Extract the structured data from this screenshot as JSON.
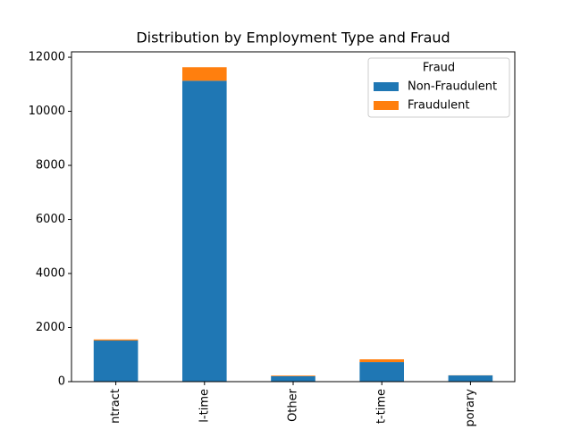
{
  "chart_data": {
    "type": "stacked_bar",
    "title": "Distribution by Employment Type and Fraud",
    "categories": [
      "ntract",
      "l-time",
      "Other",
      "t-time",
      "porary"
    ],
    "series": [
      {
        "name": "Non-Fraudulent",
        "color": "#1f77b4",
        "values": [
          1520,
          11130,
          200,
          725,
          230
        ]
      },
      {
        "name": "Fraudulent",
        "color": "#ff7f0e",
        "values": [
          40,
          500,
          25,
          100,
          5
        ]
      }
    ],
    "ylim": [
      0,
      12200
    ],
    "yticks": [
      0,
      2000,
      4000,
      6000,
      8000,
      10000,
      12000
    ],
    "legend": {
      "title": "Fraud",
      "position": "upper right"
    },
    "grid": false
  }
}
